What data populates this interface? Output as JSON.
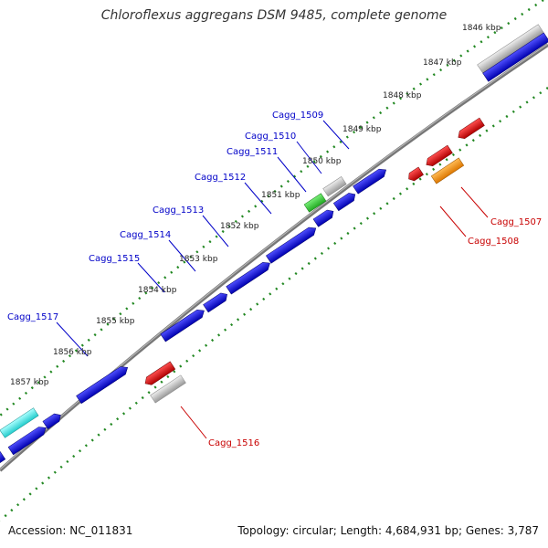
{
  "title": "Chloroflexus aggregans DSM 9485, complete genome",
  "footer": {
    "accession": "Accession: NC_011831",
    "stats": "Topology: circular; Length: 4,684,931 bp; Genes: 3,787"
  },
  "colors": {
    "forward_gene": "#1010e0",
    "reverse_gene": "#e01010",
    "grey_feature": "#c0c0c0",
    "green_feature": "#33cc33",
    "orange_feature": "#ff9900",
    "cyan_feature": "#33dddd",
    "backbone": "#888888",
    "tick_marks": "#228822",
    "forward_label": "#0000c8",
    "reverse_label": "#c80000"
  },
  "kbp_labels": [
    "1846 kbp",
    "1847 kbp",
    "1848 kbp",
    "1849 kbp",
    "1850 kbp",
    "1851 kbp",
    "1852 kbp",
    "1853 kbp",
    "1854 kbp",
    "1855 kbp",
    "1856 kbp",
    "1857 kbp"
  ],
  "forward_gene_labels": [
    "Cagg_1509",
    "Cagg_1510",
    "Cagg_1511",
    "Cagg_1512",
    "Cagg_1513",
    "Cagg_1514",
    "Cagg_1515",
    "Cagg_1517"
  ],
  "reverse_gene_labels": [
    "Cagg_1507",
    "Cagg_1508",
    "Cagg_1516"
  ]
}
